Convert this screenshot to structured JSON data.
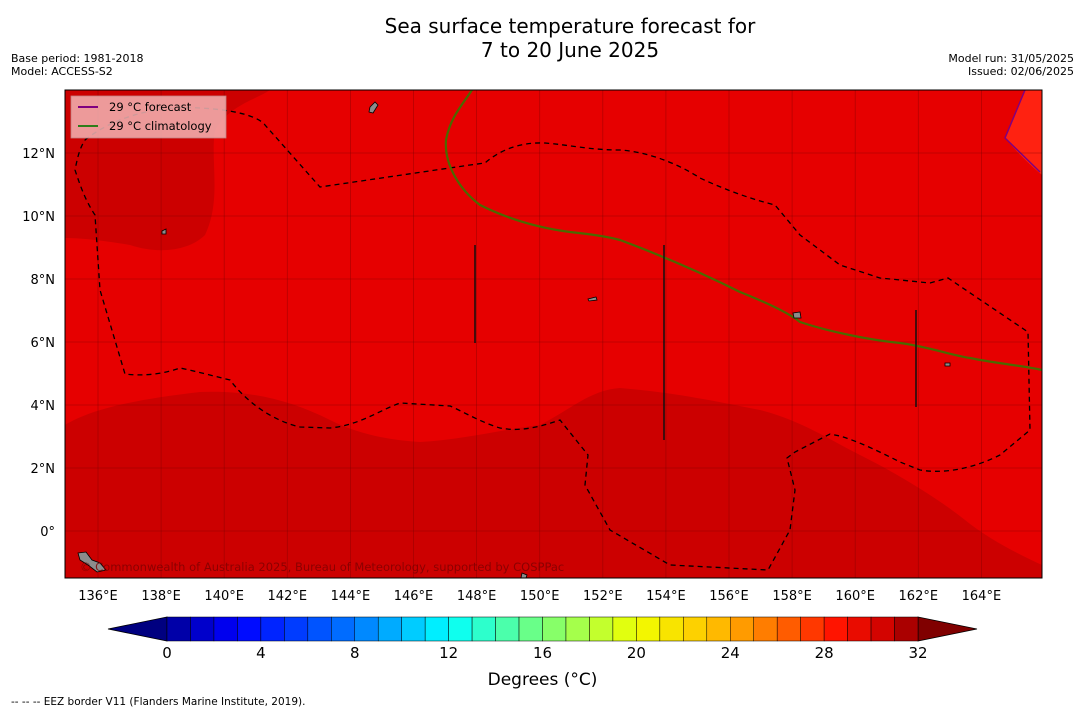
{
  "title_line1": "Sea surface temperature forecast for",
  "title_line2": "7 to 20 June 2025",
  "base_period": "Base period: 1981-2018",
  "model": "Model: ACCESS-S2",
  "model_run": "Model run: 31/05/2025",
  "issued": "Issued: 02/06/2025",
  "legend": {
    "forecast": "29 °C  forecast",
    "climatology": "29 °C  climatology",
    "forecast_color": "#800080",
    "climatology_color": "#2e7d1a"
  },
  "copyright": "© Commonwealth of Australia 2025, Bureau of Meteorology, supported by COSPPac",
  "lon_ticks": [
    "136°E",
    "138°E",
    "140°E",
    "142°E",
    "144°E",
    "146°E",
    "148°E",
    "150°E",
    "152°E",
    "154°E",
    "156°E",
    "158°E",
    "160°E",
    "162°E",
    "164°E"
  ],
  "lat_ticks": [
    "12°N",
    "10°N",
    "8°N",
    "6°N",
    "4°N",
    "2°N",
    "0°"
  ],
  "colorbar": {
    "ticks": [
      "0",
      "4",
      "8",
      "12",
      "16",
      "20",
      "24",
      "28",
      "32"
    ],
    "label": "Degrees (°C)"
  },
  "footnote": "--  --  -- EEZ border V11 (Flanders Marine Institute, 2019)."
}
